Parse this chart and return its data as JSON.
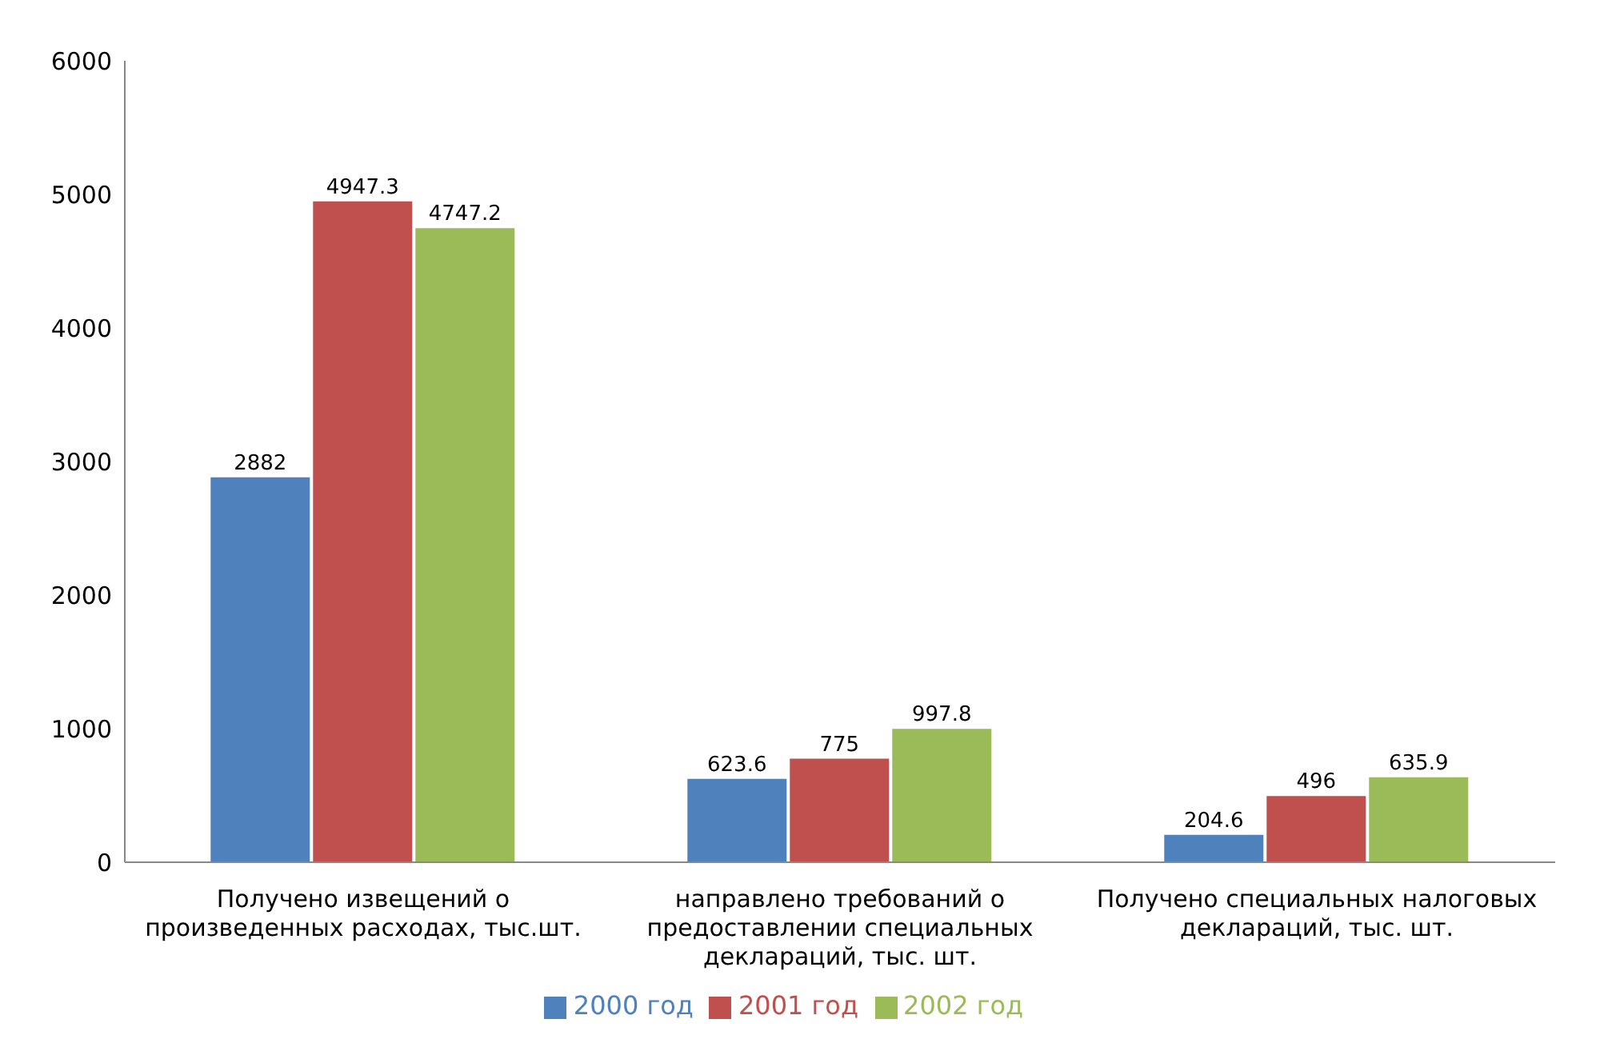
{
  "chart_data": {
    "type": "bar",
    "categories": [
      "Получено извещений о произведенных расходах, тыс.шт.",
      "направлено требований о предоставлении специальных деклараций, тыс. шт.",
      "Получено специальных налоговых деклараций, тыс. шт."
    ],
    "series": [
      {
        "name": "2000 год",
        "color": "#4f81bd",
        "values": [
          2882,
          623.6,
          204.6
        ]
      },
      {
        "name": "2001 год",
        "color": "#c0504d",
        "values": [
          4947.3,
          775,
          496
        ]
      },
      {
        "name": "2002 год",
        "color": "#9bbb59",
        "values": [
          4747.2,
          997.8,
          635.9
        ]
      }
    ],
    "ylim": [
      0,
      6000
    ],
    "yticks": [
      0,
      1000,
      2000,
      3000,
      4000,
      5000,
      6000
    ],
    "grid": false,
    "legend": "bottom",
    "data_labels": true
  }
}
